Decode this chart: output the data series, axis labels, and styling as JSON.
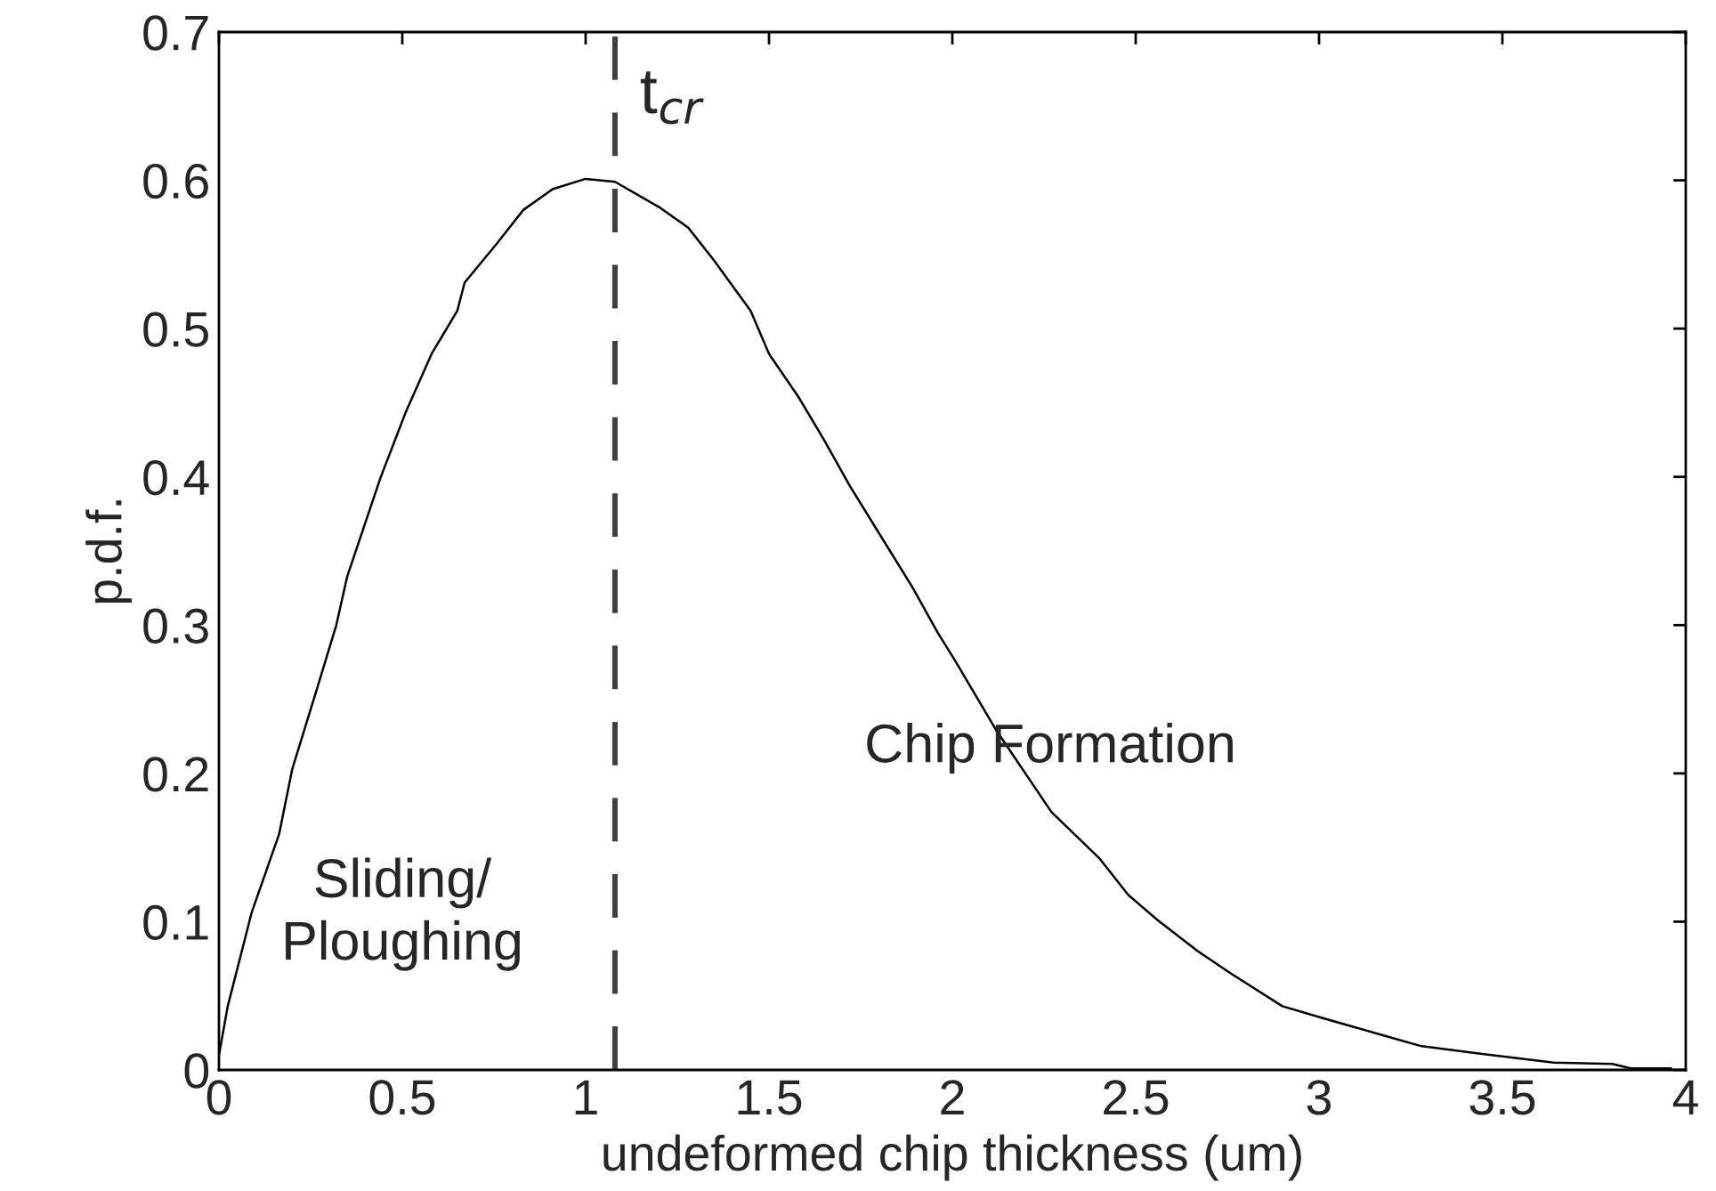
{
  "chart_data": {
    "type": "line",
    "xlabel": "undeformed chip thickness (um)",
    "ylabel": "p.d.f.",
    "xlim": [
      0,
      4
    ],
    "xticks": [
      0,
      0.5,
      1,
      1.5,
      2,
      2.5,
      3,
      3.5,
      4
    ],
    "ylim": [
      0,
      0.7
    ],
    "yticks": [
      0,
      0.1,
      0.2,
      0.3,
      0.4,
      0.5,
      0.6,
      0.7
    ],
    "grid": false,
    "marker": "none",
    "line_style": "solid",
    "series": [
      {
        "color": "#000000",
        "x": [
          0,
          0.024,
          0.089,
          0.164,
          0.2,
          0.266,
          0.32,
          0.35,
          0.44,
          0.51,
          0.58,
          0.65,
          0.67,
          0.76,
          0.83,
          0.91,
          1.0,
          1.08,
          1.2,
          1.28,
          1.35,
          1.45,
          1.5,
          1.58,
          1.65,
          1.72,
          1.8,
          1.89,
          1.96,
          2.01,
          2.12,
          2.27,
          2.4,
          2.48,
          2.56,
          2.67,
          2.76,
          2.9,
          3.01,
          3.18,
          3.28,
          3.44,
          3.64,
          3.8,
          3.85,
          3.96
        ],
        "values": [
          0.01,
          0.043,
          0.106,
          0.159,
          0.203,
          0.256,
          0.3,
          0.333,
          0.399,
          0.444,
          0.483,
          0.512,
          0.531,
          0.558,
          0.58,
          0.594,
          0.601,
          0.599,
          0.582,
          0.568,
          0.546,
          0.512,
          0.483,
          0.454,
          0.425,
          0.394,
          0.362,
          0.326,
          0.295,
          0.275,
          0.229,
          0.174,
          0.143,
          0.118,
          0.101,
          0.08,
          0.065,
          0.043,
          0.035,
          0.023,
          0.016,
          0.011,
          0.005,
          0.004,
          0.001,
          0.001
        ]
      }
    ],
    "ref_lines": [
      {
        "axis": "x",
        "value": 1.08,
        "label": "t$_{cr}$",
        "color": "#404040",
        "line_style": "dashed"
      }
    ],
    "annotations": [
      "Sliding/\nPloughing",
      "Chip Formation"
    ]
  }
}
